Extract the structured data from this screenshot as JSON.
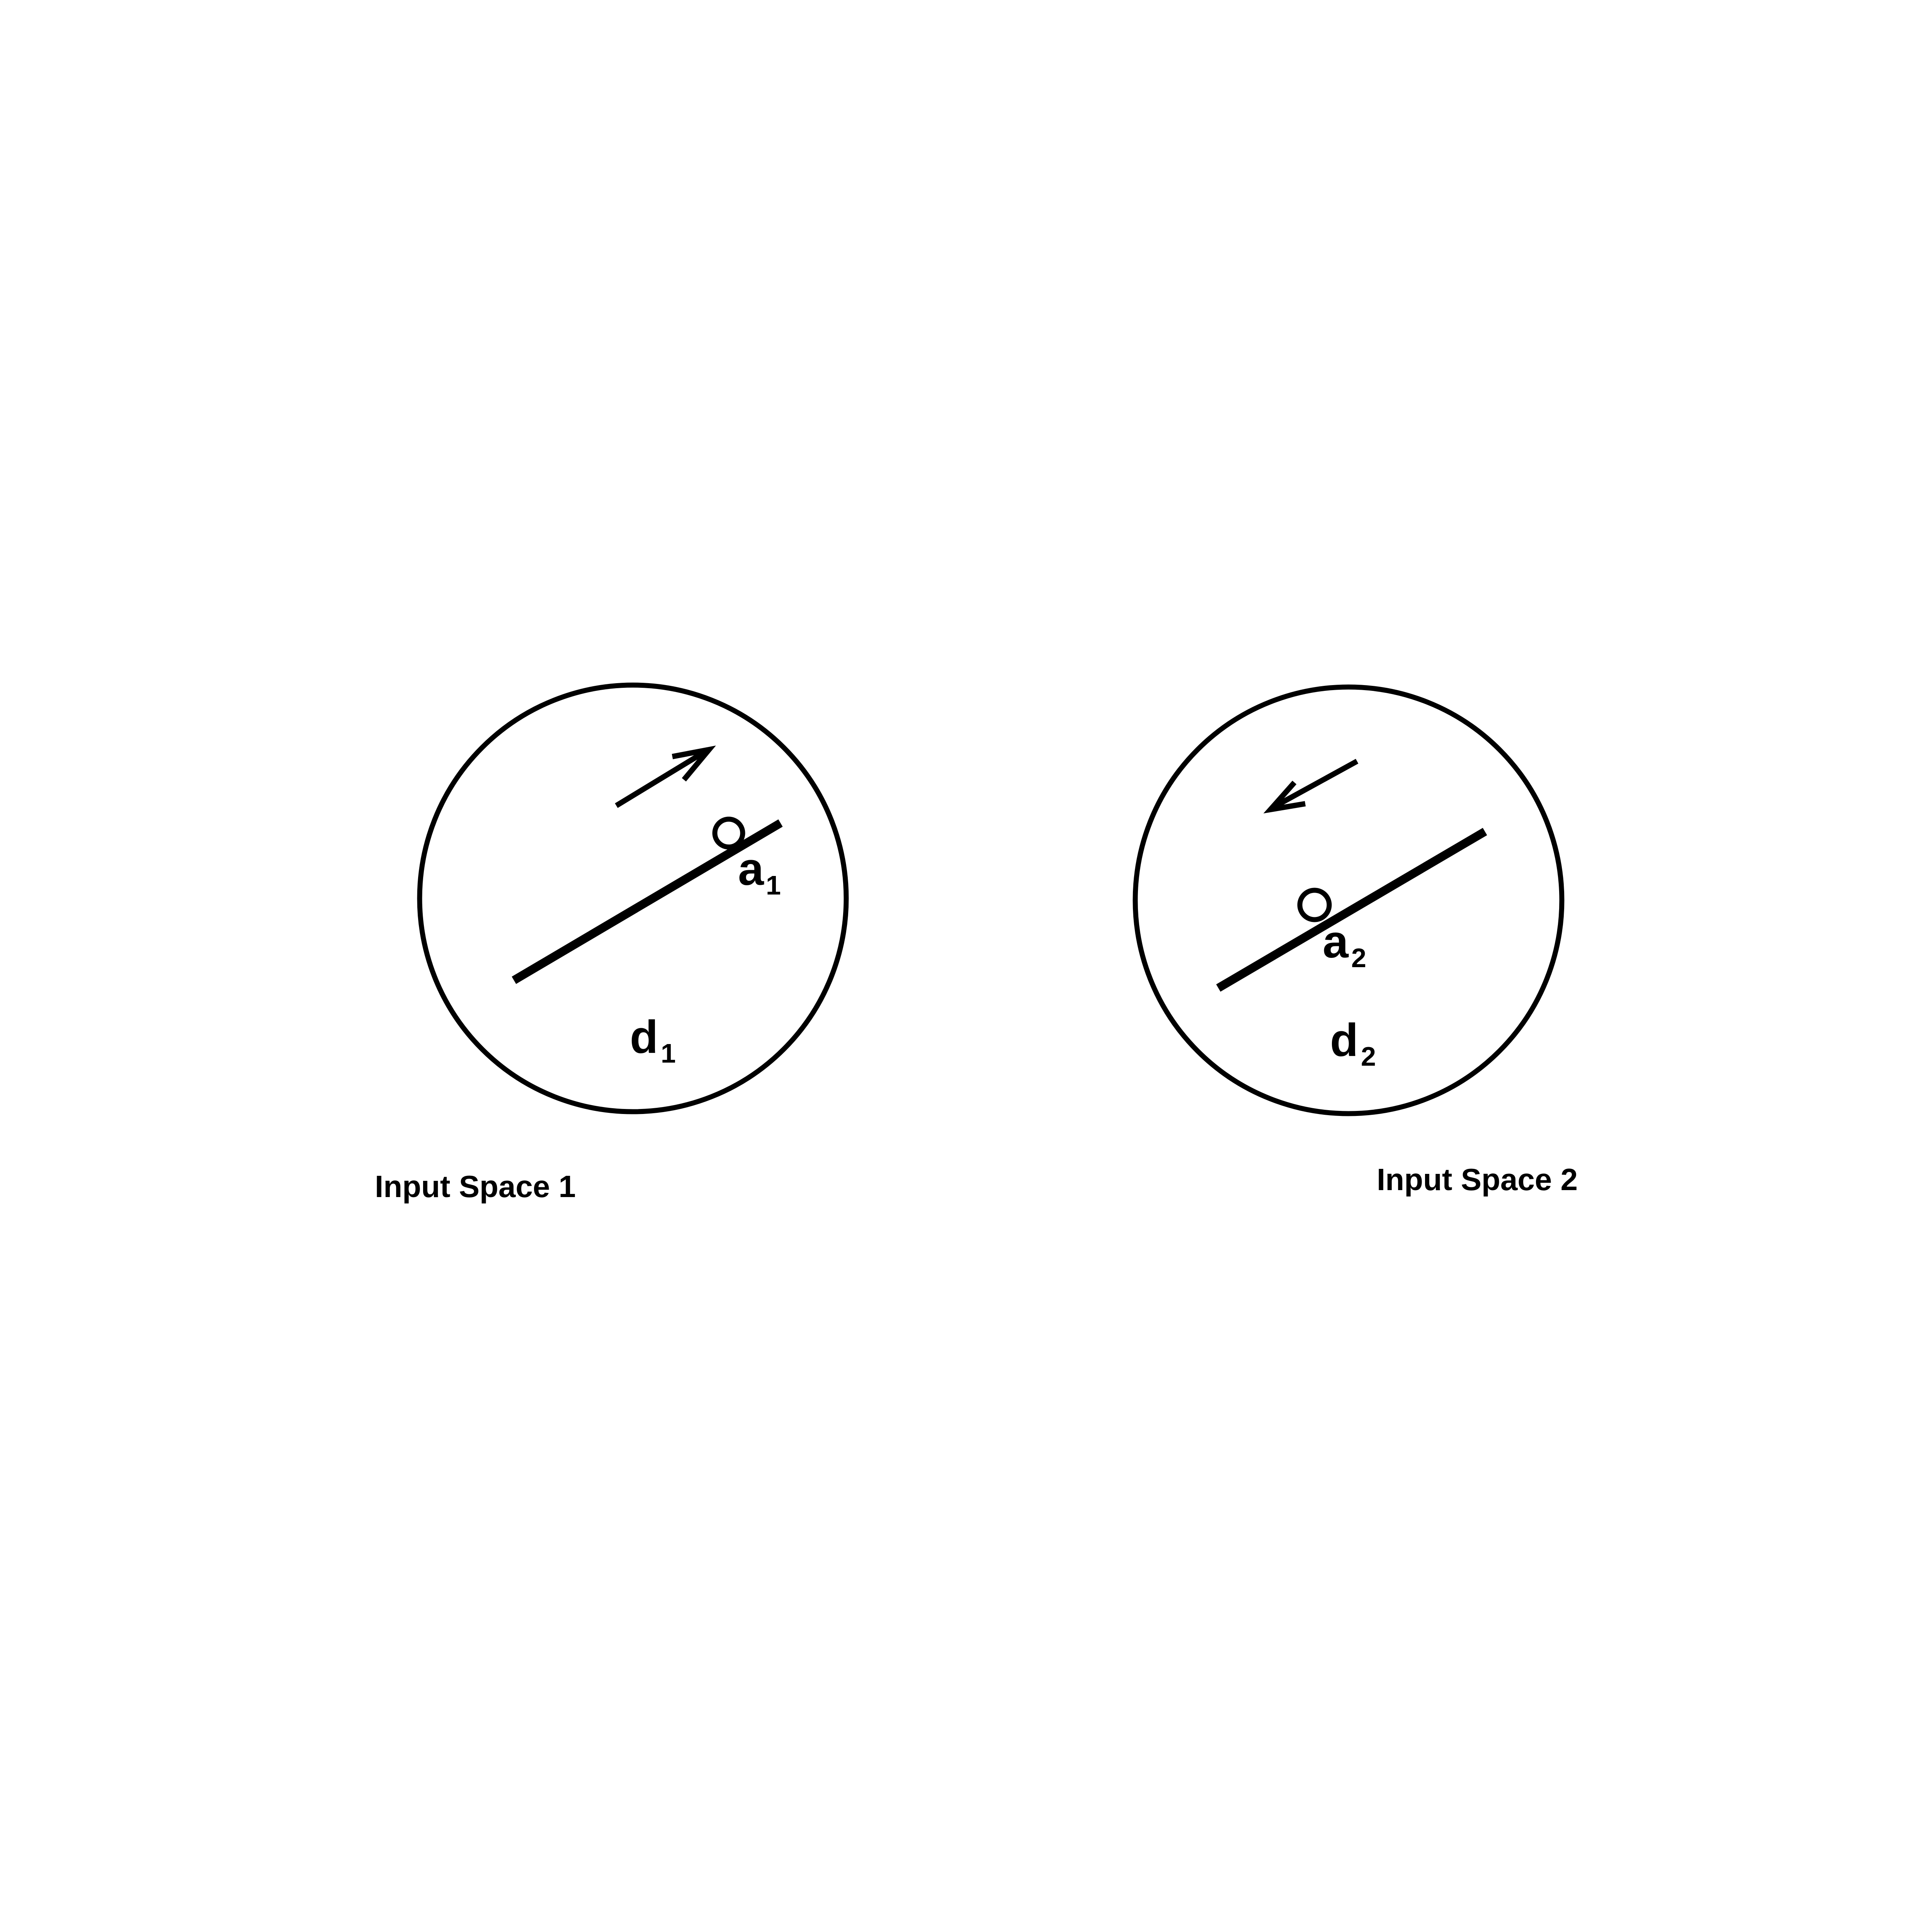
{
  "spaces": [
    {
      "caption": "Input Space 1",
      "point_label": "a",
      "point_subscript": "1",
      "domain_label": "d",
      "domain_subscript": "1",
      "arrow_direction": "up-right"
    },
    {
      "caption": "Input Space 2",
      "point_label": "a",
      "point_subscript": "2",
      "domain_label": "d",
      "domain_subscript": "2",
      "arrow_direction": "down-left"
    }
  ],
  "colors": {
    "stroke": "#000000",
    "background": "#ffffff"
  }
}
